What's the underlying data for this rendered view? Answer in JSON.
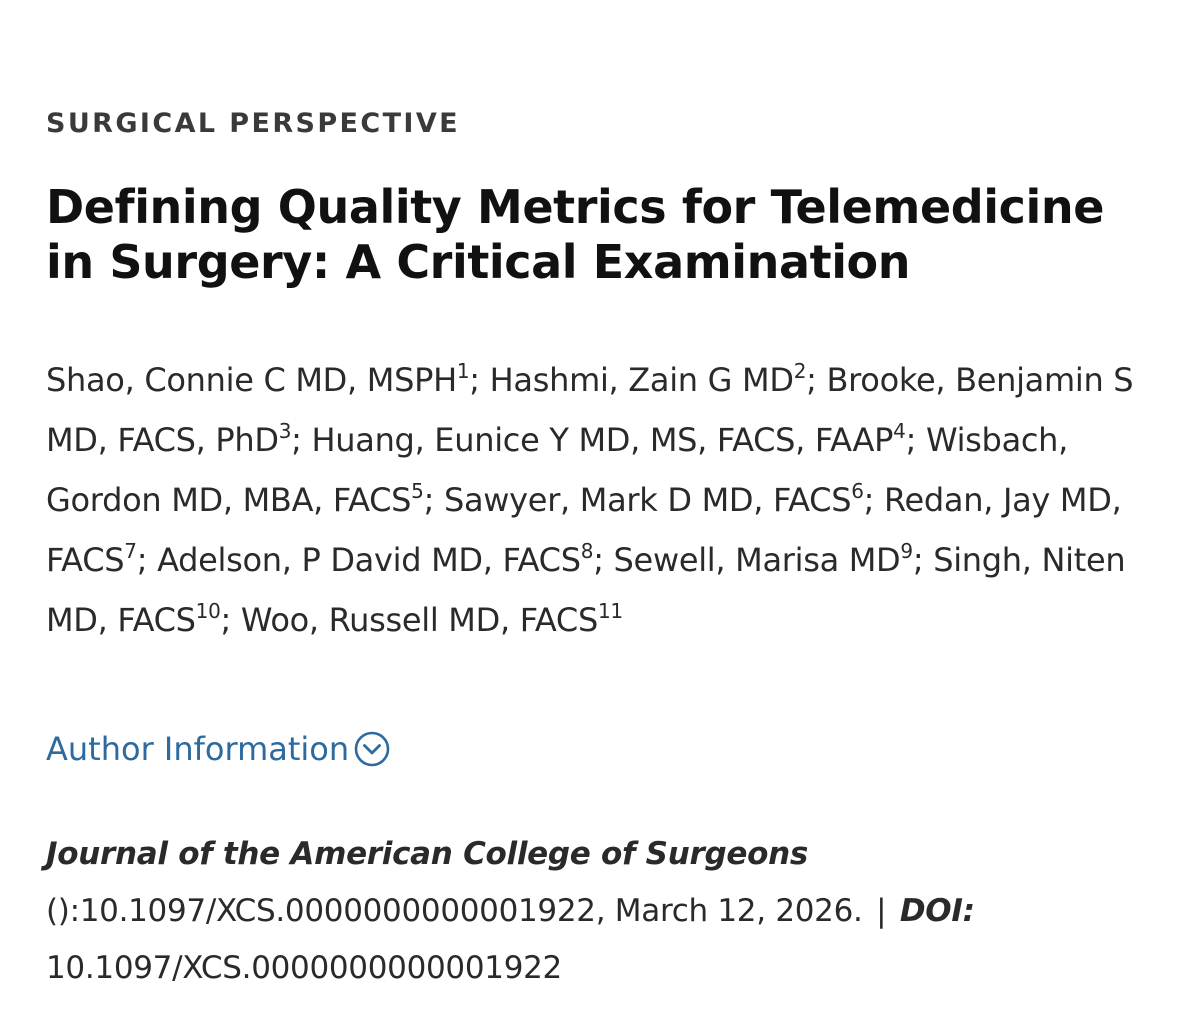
{
  "article_type": "SURGICAL PERSPECTIVE",
  "title": "Defining Quality Metrics for Telemedicine in Surgery: A Critical Examination",
  "authors": [
    {
      "name": "Shao, Connie C MD, MSPH",
      "sup": "1"
    },
    {
      "name": "Hashmi, Zain G MD",
      "sup": "2"
    },
    {
      "name": "Brooke, Benjamin S MD, FACS, PhD",
      "sup": "3"
    },
    {
      "name": "Huang, Eunice Y MD, MS, FACS, FAAP",
      "sup": "4"
    },
    {
      "name": "Wisbach, Gordon MD, MBA, FACS",
      "sup": "5"
    },
    {
      "name": "Sawyer, Mark D MD, FACS",
      "sup": "6"
    },
    {
      "name": "Redan, Jay MD, FACS",
      "sup": "7"
    },
    {
      "name": "Adelson, P David MD, FACS",
      "sup": "8"
    },
    {
      "name": "Sewell, Marisa MD",
      "sup": "9"
    },
    {
      "name": "Singh, Niten MD, FACS",
      "sup": "10"
    },
    {
      "name": "Woo, Russell MD, FACS",
      "sup": "11"
    }
  ],
  "author_info_link": "Author Information",
  "author_info_icon": "chevron-down-circle-icon",
  "citation": {
    "journal": "Journal of the American College of Surgeons",
    "ref": "():10.1097/XCS.0000000000001922, March 12, 2026.",
    "separator": "|",
    "doi_label": "DOI:",
    "doi": "10.1097/XCS.0000000000001922"
  },
  "colors": {
    "link": "#2d6a9f",
    "text": "#2a2a2a",
    "heading": "#111111"
  }
}
